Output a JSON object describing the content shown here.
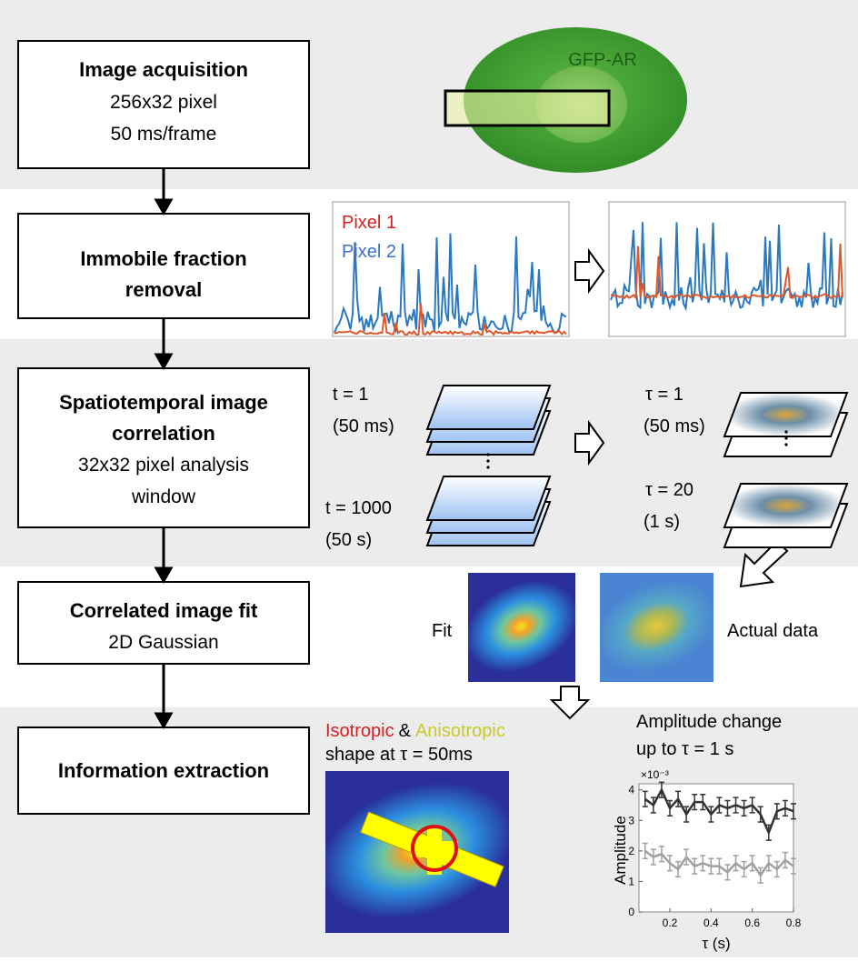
{
  "steps": [
    {
      "title": [
        "Image acquisition"
      ],
      "details": [
        "256x32 pixel",
        "50 ms/frame"
      ]
    },
    {
      "title": [
        "Immobile fraction",
        "removal"
      ]
    },
    {
      "title": [
        "Spatiotemporal image",
        "correlation"
      ],
      "details": [
        "32x32 pixel analysis",
        "window"
      ]
    },
    {
      "title": [
        "Correlated image fit"
      ],
      "details": [
        "2D Gaussian"
      ]
    },
    {
      "title": [
        "Information extraction"
      ]
    }
  ],
  "cell_label": "GFP-AR",
  "trace_legend": [
    "Pixel 1",
    "Pixel 2"
  ],
  "frames": {
    "first": [
      "t = 1",
      "(50 ms)"
    ],
    "last": [
      "t = 1000",
      "(50 s)"
    ]
  },
  "correlations": {
    "first": [
      "τ = 1",
      "(50 ms)"
    ],
    "last": [
      "τ = 20",
      "(1 s)"
    ]
  },
  "fit_labels": [
    "Fit",
    "Actual data"
  ],
  "shape_caption": {
    "isotropic": "Isotropic",
    "joiner": "&",
    "anisotropic": "Anisotropic",
    "line2": "shape at τ = 50ms"
  },
  "amplitude_caption": [
    "Amplitude change",
    "up to τ = 1 s"
  ],
  "chart_data": {
    "type": "line",
    "y_label": "Amplitude",
    "x_label": "τ (s)",
    "y_multiplier": "×10⁻³",
    "x": [
      0.08,
      0.12,
      0.16,
      0.2,
      0.24,
      0.28,
      0.32,
      0.36,
      0.4,
      0.44,
      0.48,
      0.52,
      0.56,
      0.6,
      0.64,
      0.68,
      0.72,
      0.76,
      0.8
    ],
    "series": [
      {
        "name": "Anisotropic",
        "color": "#333333",
        "values": [
          3.7,
          3.5,
          4.0,
          3.4,
          3.7,
          3.2,
          3.6,
          3.6,
          3.2,
          3.5,
          3.4,
          3.5,
          3.4,
          3.5,
          3.2,
          2.6,
          3.3,
          3.4,
          3.3
        ],
        "errors": [
          0.25,
          0.25,
          0.25,
          0.25,
          0.25,
          0.25,
          0.25,
          0.25,
          0.25,
          0.25,
          0.25,
          0.25,
          0.25,
          0.25,
          0.25,
          0.25,
          0.25,
          0.25,
          0.25
        ]
      },
      {
        "name": "Isotropic",
        "color": "#a0a0a0",
        "values": [
          2.0,
          1.8,
          1.9,
          1.6,
          1.4,
          1.8,
          1.5,
          1.6,
          1.5,
          1.5,
          1.3,
          1.6,
          1.4,
          1.6,
          1.2,
          1.6,
          1.4,
          1.7,
          1.5
        ],
        "errors": [
          0.25,
          0.25,
          0.25,
          0.25,
          0.25,
          0.25,
          0.25,
          0.25,
          0.25,
          0.25,
          0.25,
          0.25,
          0.25,
          0.25,
          0.25,
          0.25,
          0.25,
          0.25,
          0.25
        ]
      }
    ],
    "xlim": [
      0.05,
      0.8
    ],
    "ylim": [
      0,
      4.2
    ],
    "xticks": [
      0.2,
      0.4,
      0.6,
      0.8
    ],
    "yticks": [
      0,
      1,
      2,
      3,
      4
    ]
  }
}
